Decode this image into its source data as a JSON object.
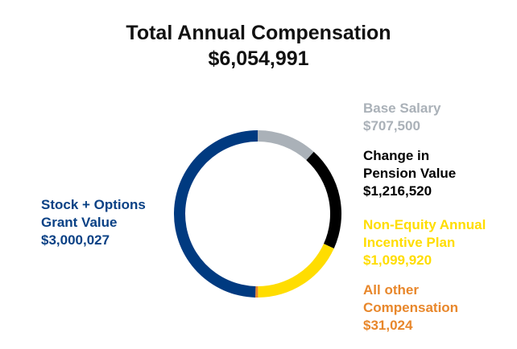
{
  "chart_data": {
    "type": "pie",
    "title": "Total Annual Compensation",
    "subtitle": "$6,054,991",
    "total": 6054991,
    "slices": [
      {
        "key": "base",
        "name_lines": [
          "Base Salary"
        ],
        "value": 707500,
        "value_label": "$707,500",
        "color": "#aab1b8"
      },
      {
        "key": "pension",
        "name_lines": [
          "Change in",
          "Pension Value"
        ],
        "value": 1216520,
        "value_label": "$1,216,520",
        "color": "#000000"
      },
      {
        "key": "nonequity",
        "name_lines": [
          "Non-Equity Annual",
          "Incentive Plan"
        ],
        "value": 1099920,
        "value_label": "$1,099,920",
        "color": "#ffdd00"
      },
      {
        "key": "other",
        "name_lines": [
          "All other",
          "Compensation"
        ],
        "value": 31024,
        "value_label": "$31,024",
        "color": "#e8872b"
      },
      {
        "key": "stock",
        "name_lines": [
          "Stock + Options",
          "Grant Value"
        ],
        "value": 3000027,
        "value_label": "$3,000,027",
        "color": "#003a80"
      }
    ],
    "label_colors": {
      "base": "#aab1b8",
      "pension": "#000000",
      "nonequity": "#ffdd00",
      "other": "#e8872b",
      "stock": "#0a4185"
    }
  }
}
